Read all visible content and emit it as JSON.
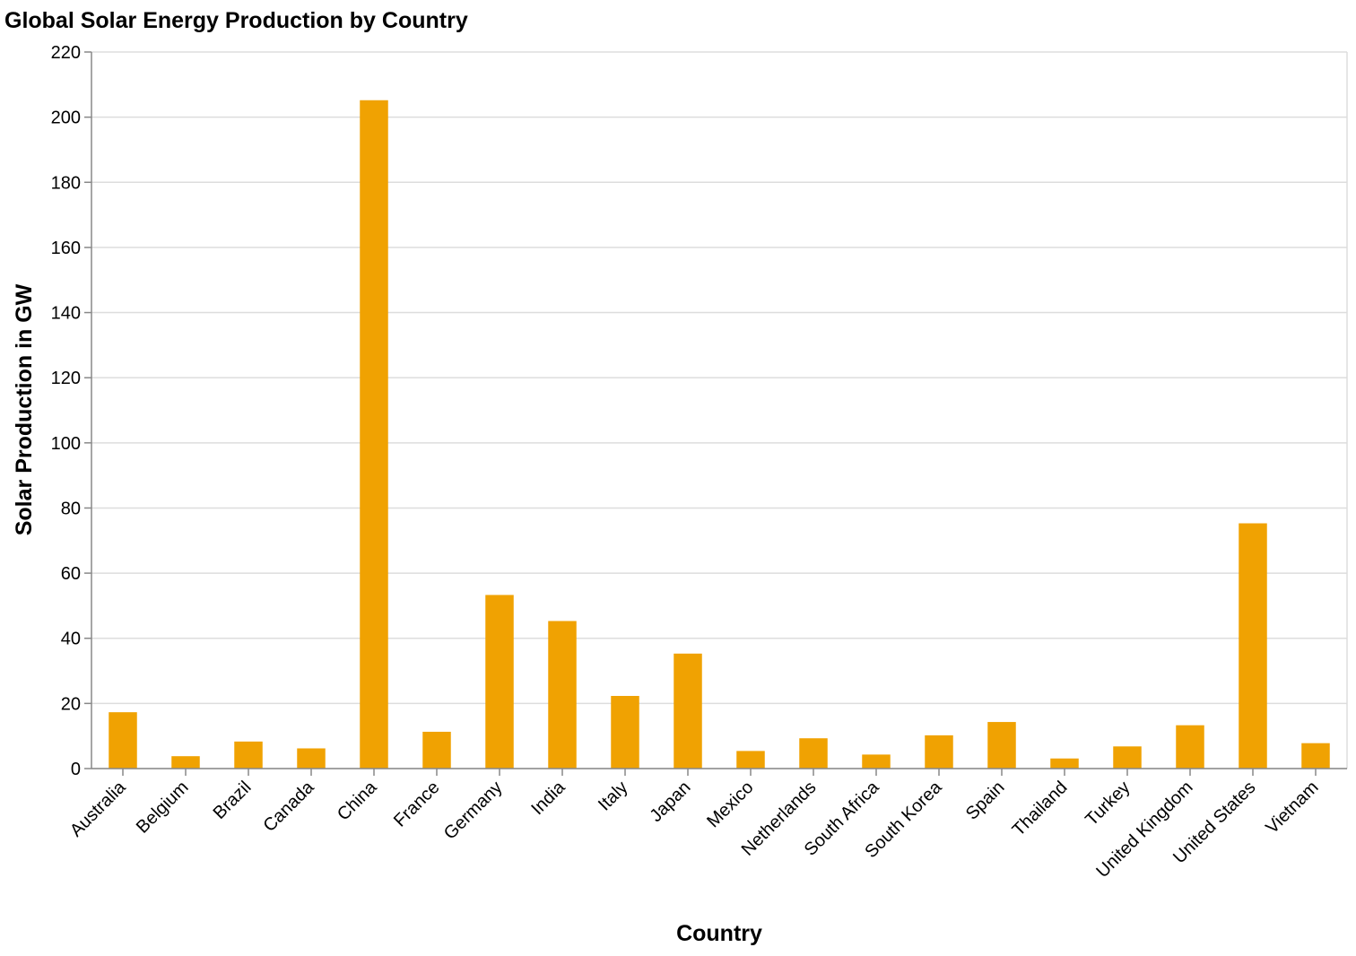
{
  "chart_data": {
    "type": "bar",
    "title": "Global Solar Energy Production by Country",
    "xlabel": "Country",
    "ylabel": "Solar Production in GW",
    "ylim": [
      0,
      220
    ],
    "yticks": [
      0,
      20,
      40,
      60,
      80,
      100,
      120,
      140,
      160,
      180,
      200,
      220
    ],
    "grid": true,
    "bar_color": "#f0a202",
    "categories": [
      "Australia",
      "Belgium",
      "Brazil",
      "Canada",
      "China",
      "France",
      "Germany",
      "India",
      "Italy",
      "Japan",
      "Mexico",
      "Netherlands",
      "South Africa",
      "South Korea",
      "Spain",
      "Thailand",
      "Turkey",
      "United Kingdom",
      "United States",
      "Vietnam"
    ],
    "values": [
      17.3,
      3.8,
      8.3,
      6.2,
      205.2,
      11.3,
      53.3,
      45.3,
      22.3,
      35.3,
      5.4,
      9.3,
      4.3,
      10.2,
      14.3,
      3.1,
      6.8,
      13.3,
      75.3,
      7.8
    ]
  }
}
